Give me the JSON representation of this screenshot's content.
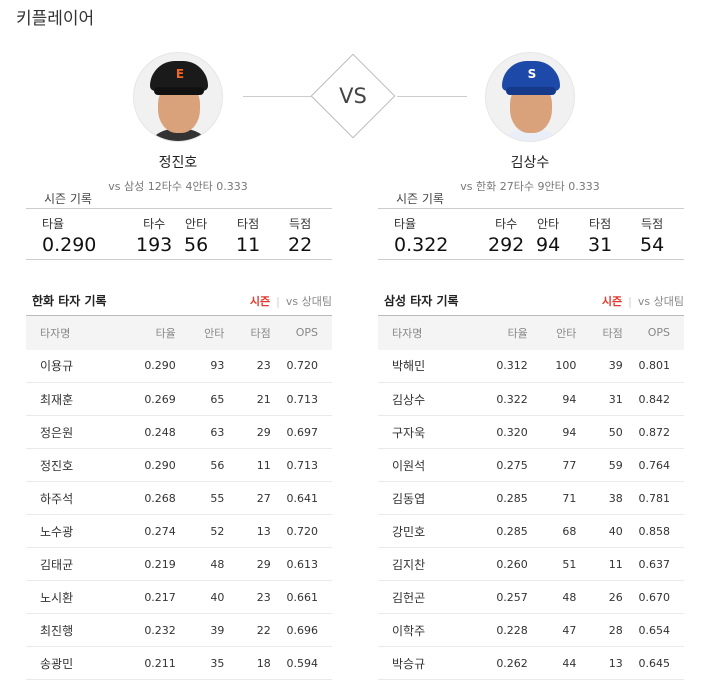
{
  "title": "키플레이어",
  "vs_label": "VS",
  "players": {
    "left": {
      "name": "정진호",
      "vs_info": "vs 삼성   12타수 4안타 0.333",
      "cap_color": "#1a1a1a",
      "logo_color": "#f26522"
    },
    "right": {
      "name": "김상수",
      "vs_info": "vs 한화   27타수 9안타 0.333",
      "cap_color": "#1d4aa8",
      "logo_color": "#ffffff"
    }
  },
  "season": {
    "title": "시즌 기록",
    "labels": [
      "타율",
      "타수",
      "안타",
      "타점",
      "득점"
    ],
    "left": [
      "0.290",
      "193",
      "56",
      "11",
      "22"
    ],
    "right": [
      "0.322",
      "292",
      "94",
      "31",
      "54"
    ]
  },
  "tables": {
    "headers": [
      "타자명",
      "타율",
      "안타",
      "타점",
      "OPS"
    ],
    "toggle_season": "시즌",
    "toggle_vs": "vs 상대팀",
    "left": {
      "title": "한화 타자 기록",
      "rows": [
        [
          "이용규",
          "0.290",
          "93",
          "23",
          "0.720"
        ],
        [
          "최재훈",
          "0.269",
          "65",
          "21",
          "0.713"
        ],
        [
          "정은원",
          "0.248",
          "63",
          "29",
          "0.697"
        ],
        [
          "정진호",
          "0.290",
          "56",
          "11",
          "0.713"
        ],
        [
          "하주석",
          "0.268",
          "55",
          "27",
          "0.641"
        ],
        [
          "노수광",
          "0.274",
          "52",
          "13",
          "0.720"
        ],
        [
          "김태균",
          "0.219",
          "48",
          "29",
          "0.613"
        ],
        [
          "노시환",
          "0.217",
          "40",
          "23",
          "0.661"
        ],
        [
          "최진행",
          "0.232",
          "39",
          "22",
          "0.696"
        ],
        [
          "송광민",
          "0.211",
          "35",
          "18",
          "0.594"
        ]
      ]
    },
    "right": {
      "title": "삼성 타자 기록",
      "rows": [
        [
          "박해민",
          "0.312",
          "100",
          "39",
          "0.801"
        ],
        [
          "김상수",
          "0.322",
          "94",
          "31",
          "0.842"
        ],
        [
          "구자욱",
          "0.320",
          "94",
          "50",
          "0.872"
        ],
        [
          "이원석",
          "0.275",
          "77",
          "59",
          "0.764"
        ],
        [
          "김동엽",
          "0.285",
          "71",
          "38",
          "0.781"
        ],
        [
          "강민호",
          "0.285",
          "68",
          "40",
          "0.858"
        ],
        [
          "김지찬",
          "0.260",
          "51",
          "11",
          "0.637"
        ],
        [
          "김헌곤",
          "0.257",
          "48",
          "26",
          "0.670"
        ],
        [
          "이학주",
          "0.228",
          "47",
          "28",
          "0.654"
        ],
        [
          "박승규",
          "0.262",
          "44",
          "13",
          "0.645"
        ]
      ]
    }
  }
}
